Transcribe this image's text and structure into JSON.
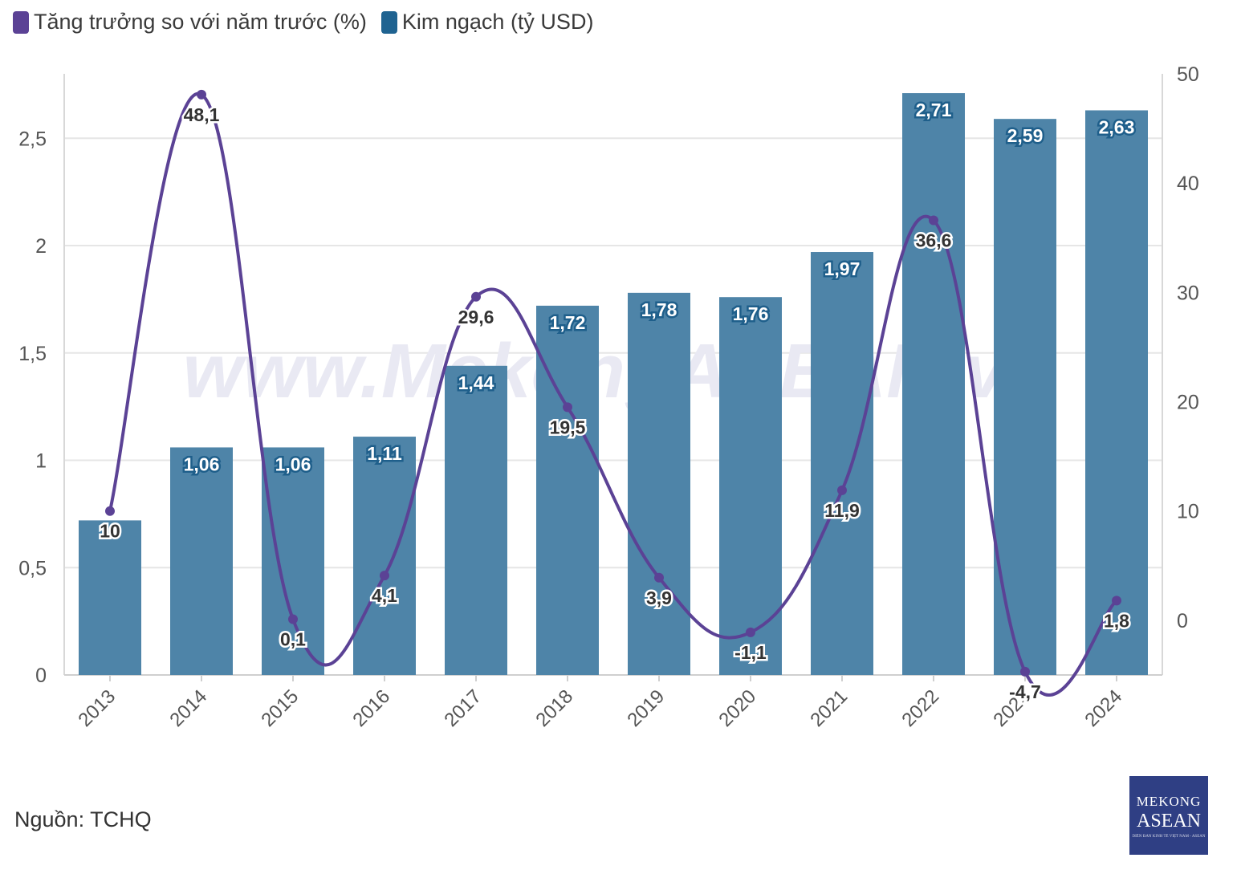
{
  "legend": {
    "growth_label": "Tăng trưởng so với năm trước (%)",
    "value_label": "Kim ngạch (tỷ USD)"
  },
  "colors": {
    "bar": "#4e84a8",
    "line": "#5b4295",
    "bar_label_stroke": "#1f5f8b"
  },
  "source": "Nguồn: TCHQ",
  "watermark": "www.MekongASEAN.vn",
  "logo": {
    "line1": "MEKONG",
    "line2": "ASEAN",
    "line3": "DIỄN ĐÀN KINH TẾ VIỆT NAM - ASEAN"
  },
  "chart_data": {
    "type": "bar",
    "categories": [
      "2013",
      "2014",
      "2015",
      "2016",
      "2017",
      "2018",
      "2019",
      "2020",
      "2021",
      "2022",
      "2023",
      "2024"
    ],
    "series": [
      {
        "name": "Kim ngạch (tỷ USD)",
        "type": "bar",
        "axis": "left",
        "values": [
          0.72,
          1.06,
          1.06,
          1.11,
          1.44,
          1.72,
          1.78,
          1.76,
          1.97,
          2.71,
          2.59,
          2.63
        ],
        "labels": [
          "",
          "1,06",
          "1,06",
          "1,11",
          "1,44",
          "1,72",
          "1,78",
          "1,76",
          "1,97",
          "2,71",
          "2,59",
          "2,63"
        ]
      },
      {
        "name": "Tăng trưởng so với năm trước (%)",
        "type": "line",
        "smooth": true,
        "axis": "right",
        "values": [
          10,
          48.1,
          0.1,
          4.1,
          29.6,
          19.5,
          3.9,
          -1.1,
          11.9,
          36.6,
          -4.7,
          1.8
        ],
        "labels": [
          "10",
          "48,1",
          "0,1",
          "4,1",
          "29,6",
          "19,5",
          "3,9",
          "-1,1",
          "11,9",
          "36,6",
          "-4,7",
          "1,8"
        ]
      }
    ],
    "y_left": {
      "min": 0,
      "max": 2.8,
      "ticks": [
        0,
        0.5,
        1,
        1.5,
        2,
        2.5
      ],
      "tick_labels": [
        "0",
        "0,5",
        "1",
        "1,5",
        "2",
        "2,5"
      ]
    },
    "y_right": {
      "min": -5,
      "max": 50,
      "ticks": [
        0,
        10,
        20,
        30,
        40,
        50
      ],
      "tick_labels": [
        "0",
        "10",
        "20",
        "30",
        "40",
        "50"
      ]
    },
    "grid": true,
    "legend_position": "top-left"
  }
}
